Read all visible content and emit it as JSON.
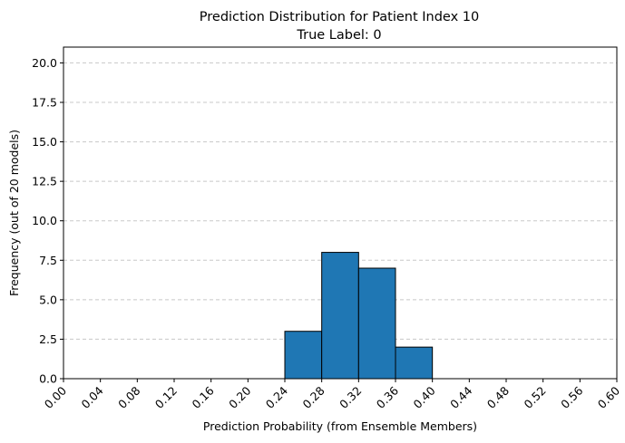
{
  "chart_data": {
    "type": "bar",
    "title": "Prediction Distribution for Patient Index 10",
    "subtitle": "True Label: 0",
    "xlabel": "Prediction Probability (from Ensemble Members)",
    "ylabel": "Frequency (out of 20 models)",
    "xlim": [
      0.0,
      0.6
    ],
    "ylim": [
      0,
      21
    ],
    "grid": "y-dashed",
    "bar_color": "#1f77b4",
    "bin_edges": [
      0.24,
      0.28,
      0.32,
      0.36,
      0.4
    ],
    "values": [
      3,
      8,
      7,
      2
    ],
    "x_ticks": [
      "0.00",
      "0.04",
      "0.08",
      "0.12",
      "0.16",
      "0.20",
      "0.24",
      "0.28",
      "0.32",
      "0.36",
      "0.40",
      "0.44",
      "0.48",
      "0.52",
      "0.56",
      "0.60"
    ],
    "x_tick_values": [
      0.0,
      0.04,
      0.08,
      0.12,
      0.16,
      0.2,
      0.24,
      0.28,
      0.32,
      0.36,
      0.4,
      0.44,
      0.48,
      0.52,
      0.56,
      0.6
    ],
    "y_ticks": [
      "0.0",
      "2.5",
      "5.0",
      "7.5",
      "10.0",
      "12.5",
      "15.0",
      "17.5",
      "20.0"
    ],
    "y_tick_values": [
      0,
      2.5,
      5,
      7.5,
      10,
      12.5,
      15,
      17.5,
      20
    ]
  }
}
